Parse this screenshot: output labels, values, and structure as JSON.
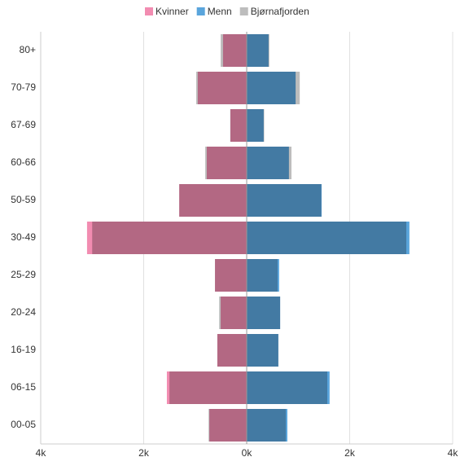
{
  "chart_data": {
    "type": "pyramid",
    "categories": [
      "80+",
      "70-79",
      "67-69",
      "60-66",
      "50-59",
      "30-49",
      "25-29",
      "20-24",
      "16-19",
      "06-15",
      "00-05"
    ],
    "series": [
      {
        "name": "Kvinner",
        "color": "#f28cb1",
        "values": [
          -460,
          -950,
          -316,
          -775,
          -1310,
          -3100,
          -615,
          -505,
          -570,
          -1550,
          -725
        ]
      },
      {
        "name": "Menn",
        "color": "#5aa5dc",
        "values": [
          425,
          950,
          330,
          820,
          1455,
          3160,
          630,
          650,
          615,
          1610,
          790
        ]
      },
      {
        "name": "Bjørnafjorden",
        "color": "#bdbdbd",
        "values": [
          [
            -505,
            440
          ],
          [
            -980,
            1030
          ],
          [
            -320,
            340
          ],
          [
            -805,
            870
          ],
          [
            -1310,
            1450
          ],
          [
            -3000,
            3100
          ],
          [
            -617,
            600
          ],
          [
            -535,
            650
          ],
          [
            -570,
            615
          ],
          [
            -1500,
            1565
          ],
          [
            -740,
            760
          ]
        ]
      }
    ],
    "xlim": [
      -4000,
      4000
    ],
    "xticks": [
      {
        "value": -4000,
        "label": "4k"
      },
      {
        "value": -2000,
        "label": "2k"
      },
      {
        "value": 0,
        "label": "0k"
      },
      {
        "value": 2000,
        "label": "2k"
      },
      {
        "value": 4000,
        "label": "4k"
      }
    ],
    "grid": true
  }
}
